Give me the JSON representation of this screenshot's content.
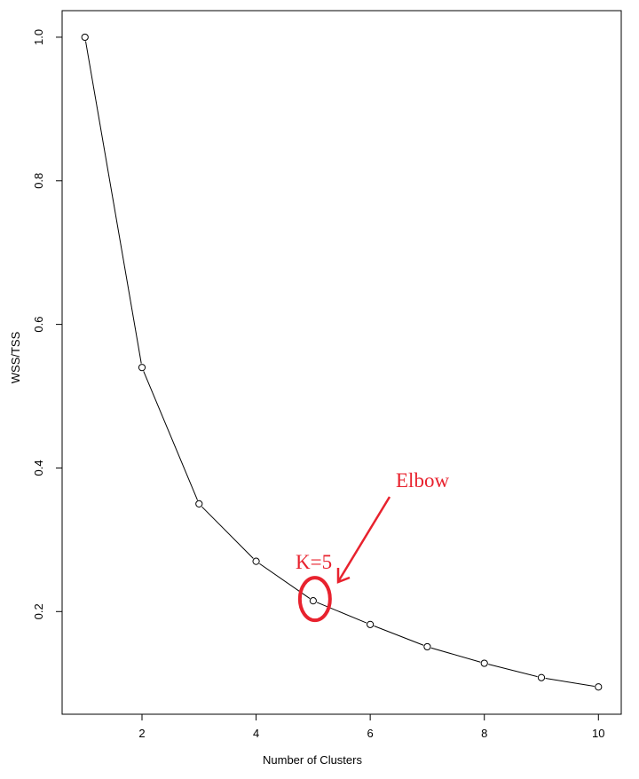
{
  "chart_data": {
    "type": "line",
    "title": "",
    "xlabel": "Number of Clusters",
    "ylabel": "WSS/TSS",
    "x": [
      1,
      2,
      3,
      4,
      5,
      6,
      7,
      8,
      9,
      10
    ],
    "series": [
      {
        "values": [
          1.0,
          0.54,
          0.35,
          0.27,
          0.215,
          0.182,
          0.151,
          0.128,
          0.108,
          0.095
        ]
      }
    ],
    "xlim": [
      0.6,
      10.4
    ],
    "ylim": [
      0.057,
      1.037
    ],
    "xticks": [
      2,
      4,
      6,
      8,
      10
    ],
    "yticks": [
      0.2,
      0.4,
      0.6,
      0.8,
      1.0
    ],
    "xtick_labels": [
      "2",
      "4",
      "6",
      "8",
      "10"
    ],
    "ytick_labels": [
      "0.2",
      "0.4",
      "0.6",
      "0.8",
      "1.0"
    ],
    "grid": false,
    "line_color": "#000000",
    "annotations": {
      "color": "#e8222e",
      "elbow_label": "Elbow",
      "k_label": "K=5",
      "highlight_x": 5,
      "highlight_y": 0.215
    }
  }
}
